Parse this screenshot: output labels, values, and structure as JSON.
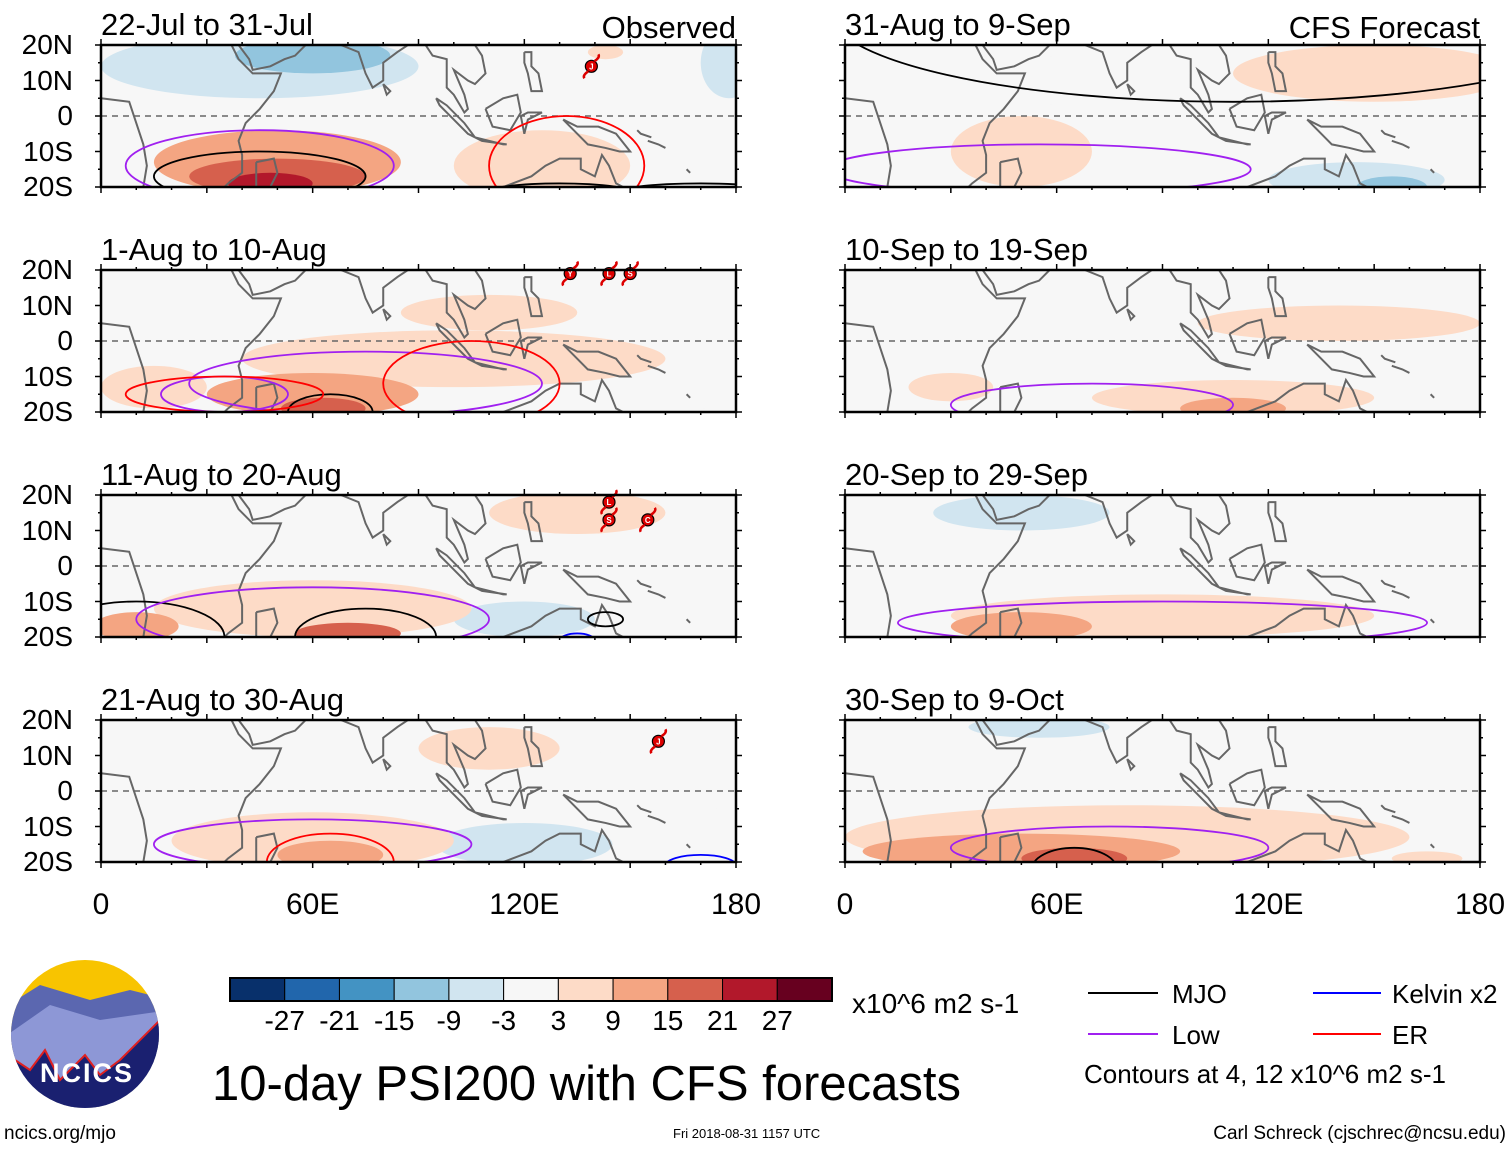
{
  "chart_data": {
    "type": "heatmap",
    "title": "10-day PSI200 with CFS forecasts",
    "variable": "PSI200 anomaly",
    "units": "x10^6 m2 s-1",
    "lon_range": [
      0,
      180
    ],
    "lat_range": [
      -20,
      20
    ],
    "lat_ticks": [
      "20N",
      "10N",
      "0",
      "10S",
      "20S"
    ],
    "lon_ticks": [
      "0",
      "60E",
      "120E",
      "180"
    ],
    "colorbar": {
      "levels": [
        "-27",
        "-21",
        "-15",
        "-9",
        "-3",
        "3",
        "9",
        "15",
        "21",
        "27"
      ],
      "colors": [
        "#08306b",
        "#2166ac",
        "#4393c3",
        "#92c5de",
        "#d1e5f0",
        "#f7f7f7",
        "#fddbc7",
        "#f4a582",
        "#d6604d",
        "#b2182b",
        "#67001f"
      ]
    },
    "legend": [
      {
        "label": "MJO",
        "color": "#000000"
      },
      {
        "label": "Low",
        "color": "#a020f0"
      },
      {
        "label": "Kelvin x2",
        "color": "#0000ff"
      },
      {
        "label": "ER",
        "color": "#ff0000"
      }
    ],
    "contour_note": "Contours at 4, 12 x10^6 m2 s-1",
    "panels": [
      {
        "title": "22-Jul to 31-Jul",
        "tag": "Observed",
        "col": 0,
        "row": 0,
        "blobs": [
          [
            45,
            14,
            45,
            9,
            -9
          ],
          [
            60,
            17,
            22,
            5,
            -15
          ],
          [
            150,
            14,
            50,
            7,
            -3
          ],
          [
            178,
            15,
            8,
            10,
            -9
          ],
          [
            100,
            -12,
            18,
            8,
            -3
          ],
          [
            160,
            -5,
            18,
            8,
            -3
          ],
          [
            50,
            -13,
            35,
            9,
            9
          ],
          [
            50,
            -17,
            25,
            5,
            15
          ],
          [
            48,
            -19,
            12,
            3,
            24
          ],
          [
            125,
            -14,
            25,
            10,
            6
          ],
          [
            143,
            18,
            5,
            2,
            6
          ]
        ],
        "contours": [
          [
            45,
            -17,
            30,
            7,
            "#000000"
          ],
          [
            45,
            -14,
            38,
            10,
            "#a020f0"
          ],
          [
            132,
            -14,
            22,
            14,
            "#ff0000"
          ],
          [
            170,
            -22,
            25,
            3,
            "#000000"
          ],
          [
            130,
            -22,
            22,
            3,
            "#000000"
          ]
        ],
        "storms": [
          [
            139,
            14,
            "J"
          ]
        ]
      },
      {
        "title": "1-Aug to 10-Aug",
        "tag": "",
        "col": 0,
        "row": 1,
        "blobs": [
          [
            40,
            18,
            40,
            5,
            -3
          ],
          [
            150,
            -10,
            50,
            10,
            -3
          ],
          [
            165,
            10,
            20,
            12,
            -3
          ],
          [
            100,
            -5,
            60,
            8,
            3
          ],
          [
            110,
            8,
            25,
            5,
            6
          ],
          [
            60,
            -15,
            30,
            6,
            9
          ],
          [
            63,
            -19,
            12,
            3,
            15
          ],
          [
            15,
            -13,
            15,
            6,
            6
          ]
        ],
        "contours": [
          [
            65,
            -20,
            12,
            5,
            "#000000"
          ],
          [
            75,
            -12,
            50,
            9,
            "#a020f0"
          ],
          [
            105,
            -12,
            25,
            12,
            "#ff0000"
          ],
          [
            35,
            -15,
            18,
            5,
            "#a020f0"
          ],
          [
            35,
            -15,
            28,
            5,
            "#ff0000"
          ]
        ],
        "storms": [
          [
            133,
            19,
            "Y"
          ],
          [
            144,
            19,
            "L"
          ],
          [
            150,
            19,
            "S"
          ]
        ]
      },
      {
        "title": "11-Aug to 20-Aug",
        "tag": "",
        "col": 0,
        "row": 2,
        "blobs": [
          [
            40,
            15,
            40,
            6,
            -3
          ],
          [
            165,
            5,
            25,
            18,
            -3
          ],
          [
            120,
            -12,
            40,
            8,
            -3
          ],
          [
            120,
            -15,
            20,
            5,
            -9
          ],
          [
            135,
            15,
            25,
            6,
            6
          ],
          [
            60,
            -12,
            45,
            8,
            6
          ],
          [
            70,
            -19,
            15,
            3,
            15
          ],
          [
            10,
            -17,
            12,
            4,
            9
          ]
        ],
        "contours": [
          [
            75,
            -20,
            20,
            8,
            "#000000"
          ],
          [
            10,
            -20,
            25,
            10,
            "#000000"
          ],
          [
            60,
            -15,
            50,
            9,
            "#a020f0"
          ],
          [
            143,
            -15,
            5,
            2,
            "#000000"
          ],
          [
            135,
            -21,
            5,
            2,
            "#0000ff"
          ]
        ],
        "storms": [
          [
            144,
            18,
            "L"
          ],
          [
            144,
            13,
            "S"
          ],
          [
            155,
            13,
            "C"
          ]
        ]
      },
      {
        "title": "21-Aug to 30-Aug",
        "tag": "",
        "col": 0,
        "row": 3,
        "blobs": [
          [
            140,
            -10,
            40,
            10,
            -3
          ],
          [
            120,
            -15,
            25,
            6,
            -9
          ],
          [
            165,
            8,
            25,
            8,
            -3
          ],
          [
            40,
            8,
            12,
            5,
            -3
          ],
          [
            10,
            -12,
            12,
            6,
            -3
          ],
          [
            110,
            12,
            20,
            6,
            6
          ],
          [
            60,
            -14,
            40,
            8,
            3
          ],
          [
            65,
            -18,
            15,
            4,
            9
          ]
        ],
        "contours": [
          [
            65,
            -20,
            18,
            8,
            "#ff0000"
          ],
          [
            60,
            -15,
            45,
            7,
            "#a020f0"
          ],
          [
            170,
            -21,
            10,
            3,
            "#0000ff"
          ]
        ],
        "storms": [
          [
            158,
            14,
            "J"
          ]
        ]
      },
      {
        "title": "31-Aug to 9-Sep",
        "tag": "CFS Forecast",
        "col": 1,
        "row": 0,
        "blobs": [
          [
            40,
            10,
            25,
            10,
            -3
          ],
          [
            140,
            -15,
            45,
            8,
            -3
          ],
          [
            145,
            -18,
            25,
            5,
            -9
          ],
          [
            155,
            -20,
            10,
            3,
            -15
          ],
          [
            150,
            12,
            40,
            8,
            3
          ],
          [
            50,
            -10,
            20,
            10,
            3
          ],
          [
            90,
            -5,
            10,
            6,
            -3
          ]
        ],
        "contours": [
          [
            110,
            30,
            115,
            26,
            "#000000"
          ],
          [
            55,
            -15,
            60,
            7,
            "#a020f0"
          ]
        ],
        "storms": []
      },
      {
        "title": "10-Sep to 19-Sep",
        "tag": "",
        "col": 1,
        "row": 1,
        "blobs": [
          [
            50,
            12,
            50,
            8,
            -3
          ],
          [
            150,
            -5,
            45,
            10,
            -3
          ],
          [
            140,
            5,
            40,
            5,
            3
          ],
          [
            110,
            -16,
            40,
            5,
            3
          ],
          [
            110,
            -19,
            15,
            3,
            9
          ],
          [
            30,
            -13,
            12,
            4,
            3
          ]
        ],
        "contours": [
          [
            70,
            -18,
            40,
            6,
            "#a020f0"
          ]
        ],
        "storms": []
      },
      {
        "title": "20-Sep to 29-Sep",
        "tag": "",
        "col": 1,
        "row": 2,
        "blobs": [
          [
            60,
            12,
            55,
            8,
            -3
          ],
          [
            50,
            15,
            25,
            5,
            -9
          ],
          [
            120,
            -10,
            50,
            10,
            -3
          ],
          [
            90,
            -14,
            60,
            6,
            3
          ],
          [
            50,
            -17,
            20,
            4,
            9
          ]
        ],
        "contours": [
          [
            90,
            -16,
            75,
            6,
            "#a020f0"
          ]
        ],
        "storms": []
      },
      {
        "title": "30-Sep to 9-Oct",
        "tag": "",
        "col": 1,
        "row": 3,
        "blobs": [
          [
            40,
            15,
            40,
            5,
            -3
          ],
          [
            140,
            10,
            50,
            8,
            -3
          ],
          [
            55,
            18,
            20,
            3,
            -9
          ],
          [
            80,
            -13,
            80,
            9,
            3
          ],
          [
            50,
            -17,
            45,
            5,
            9
          ],
          [
            65,
            -19,
            15,
            3,
            15
          ],
          [
            165,
            -19,
            10,
            2,
            3
          ]
        ],
        "contours": [
          [
            65,
            -22,
            12,
            6,
            "#000000"
          ],
          [
            75,
            -16,
            45,
            6,
            "#a020f0"
          ]
        ],
        "storms": []
      }
    ]
  },
  "footer": {
    "site": "ncics.org/mjo",
    "timestamp": "Fri 2018-08-31 1157 UTC",
    "author": "Carl Schreck (cjschrec@ncsu.edu)",
    "logo_text": "NCICS"
  }
}
